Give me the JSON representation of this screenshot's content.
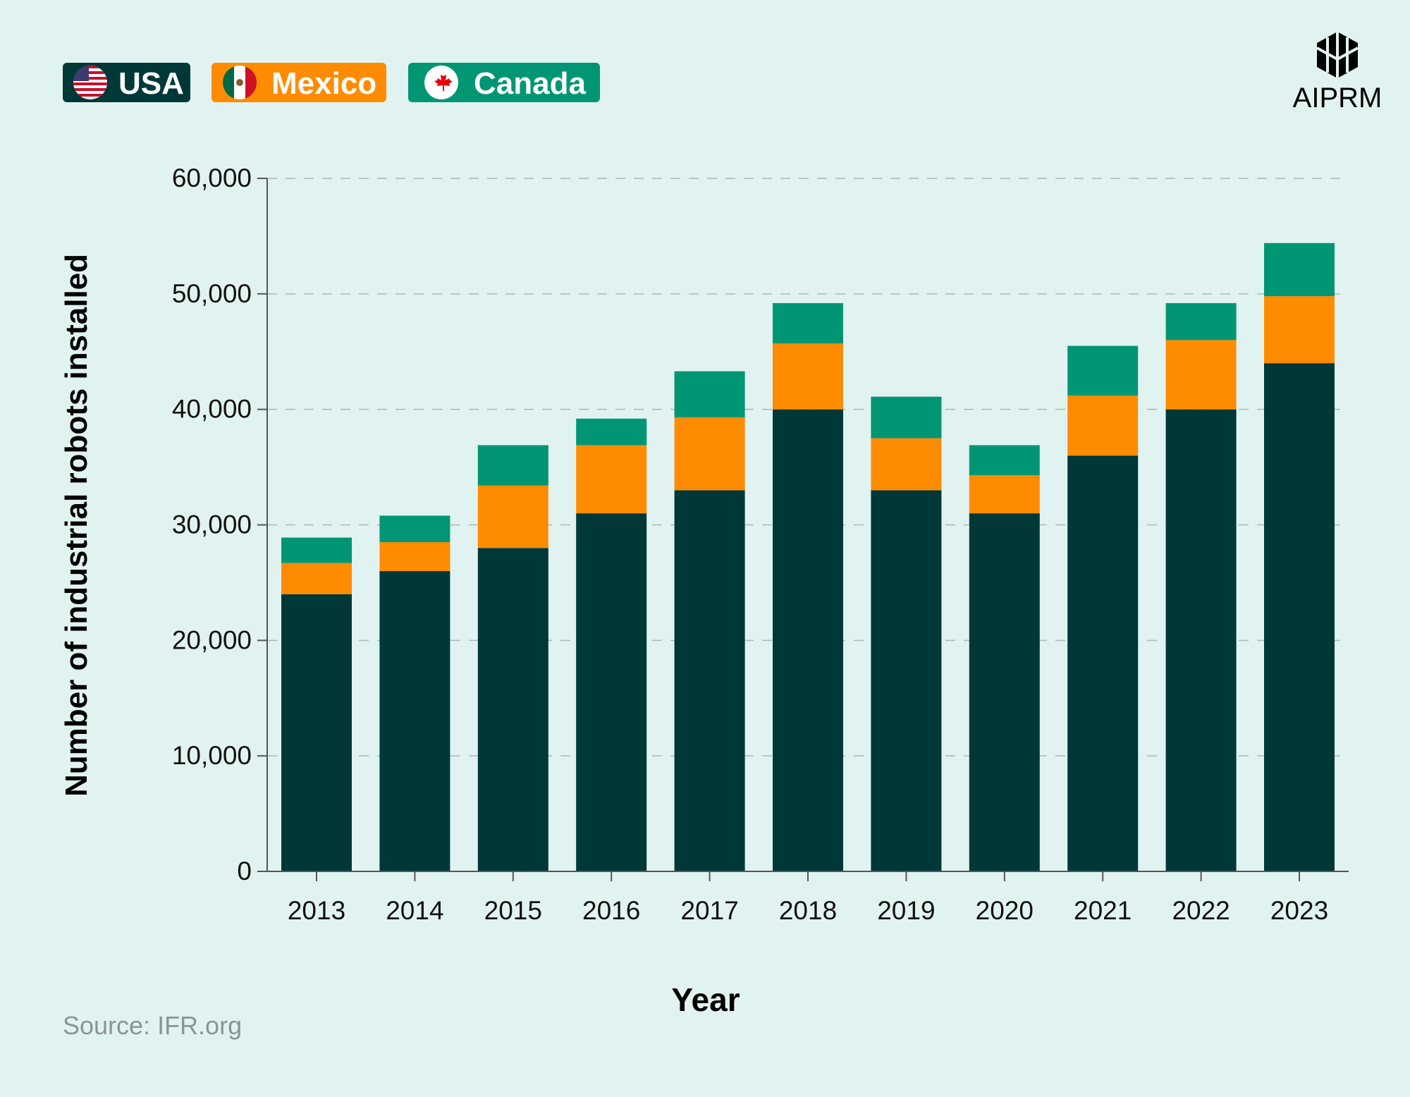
{
  "colors": {
    "background": "#e1f3f1",
    "USA": "#003838",
    "Mexico": "#ff8c00",
    "Canada": "#009674",
    "grid": "#a9b7b5",
    "source": "#8a9593"
  },
  "legend": [
    {
      "label": "USA",
      "icon": "usa-flag-icon"
    },
    {
      "label": "Mexico",
      "icon": "mexico-flag-icon"
    },
    {
      "label": "Canada",
      "icon": "canada-flag-icon"
    }
  ],
  "logo": {
    "text": "AIPRM",
    "icon": "aiprm-logo-icon"
  },
  "source": "Source: IFR.org",
  "chart_data": {
    "type": "bar",
    "stacked": true,
    "xlabel": "Year",
    "ylabel": "Number of industrial robots installed",
    "ylim": [
      0,
      60000
    ],
    "yticks": [
      "0",
      "10,000",
      "20,000",
      "30,000",
      "40,000",
      "50,000",
      "60,000"
    ],
    "ytick_values": [
      0,
      10000,
      20000,
      30000,
      40000,
      50000,
      60000
    ],
    "grid": true,
    "legend_position": "top-left",
    "categories": [
      "2013",
      "2014",
      "2015",
      "2016",
      "2017",
      "2018",
      "2019",
      "2020",
      "2021",
      "2022",
      "2023"
    ],
    "series": [
      {
        "name": "USA",
        "values": [
          24000,
          26000,
          28000,
          31000,
          33000,
          40000,
          33000,
          31000,
          36000,
          40000,
          44000
        ]
      },
      {
        "name": "Mexico",
        "values": [
          2700,
          2500,
          5400,
          5900,
          6300,
          5700,
          4500,
          3300,
          5200,
          6000,
          5800
        ]
      },
      {
        "name": "Canada",
        "values": [
          2200,
          2300,
          3500,
          2300,
          4000,
          3500,
          3600,
          2600,
          4300,
          3200,
          4600
        ]
      }
    ]
  }
}
